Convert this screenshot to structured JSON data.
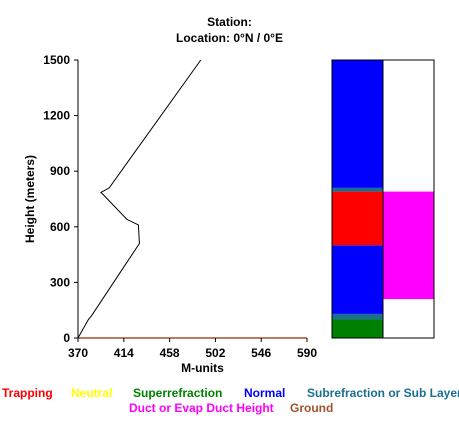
{
  "chart_data": {
    "type": "line",
    "title": "Station:",
    "subtitle": "Location:  0°N /  0°E",
    "xlabel": "M-units",
    "ylabel": "Height (meters)",
    "xlim": [
      370,
      590
    ],
    "ylim": [
      0,
      1500
    ],
    "xticks": [
      "370",
      "414",
      "458",
      "502",
      "546",
      "590"
    ],
    "yticks": [
      "0",
      "300",
      "600",
      "900",
      "1200",
      "1500"
    ],
    "series": [
      {
        "points": [
          {
            "x": 370,
            "y": 0
          },
          {
            "x": 380,
            "y": 100
          },
          {
            "x": 383,
            "y": 120
          },
          {
            "x": 429,
            "y": 510
          },
          {
            "x": 428,
            "y": 610
          },
          {
            "x": 417,
            "y": 640
          },
          {
            "x": 394,
            "y": 775
          },
          {
            "x": 392,
            "y": 785
          },
          {
            "x": 400,
            "y": 810
          },
          {
            "x": 488,
            "y": 1500
          }
        ]
      }
    ],
    "bars": {
      "left": [
        {
          "from": 0,
          "to": 100,
          "color": "#008000"
        },
        {
          "from": 100,
          "to": 130,
          "color": "#1a6f8f"
        },
        {
          "from": 130,
          "to": 500,
          "color": "#0000ff"
        },
        {
          "from": 500,
          "to": 790,
          "color": "#ff0000"
        },
        {
          "from": 790,
          "to": 810,
          "color": "#1a6f8f"
        },
        {
          "from": 810,
          "to": 1500,
          "color": "#0000ff"
        }
      ],
      "right": [
        {
          "from": 210,
          "to": 790,
          "color": "#ff00ff"
        }
      ]
    },
    "ground_color": "#a0522d",
    "legend": [
      {
        "label": "Trapping",
        "color": "#ff0000"
      },
      {
        "label": "Neutral",
        "color": "#ffff00"
      },
      {
        "label": "Superrefraction",
        "color": "#008000"
      },
      {
        "label": "Normal",
        "color": "#0000ff"
      },
      {
        "label": "Subrefraction or Sub Layer",
        "color": "#1a6f8f"
      },
      {
        "label": "Duct or Evap Duct Height",
        "color": "#ff00ff"
      },
      {
        "label": "Ground",
        "color": "#a0522d"
      }
    ]
  }
}
